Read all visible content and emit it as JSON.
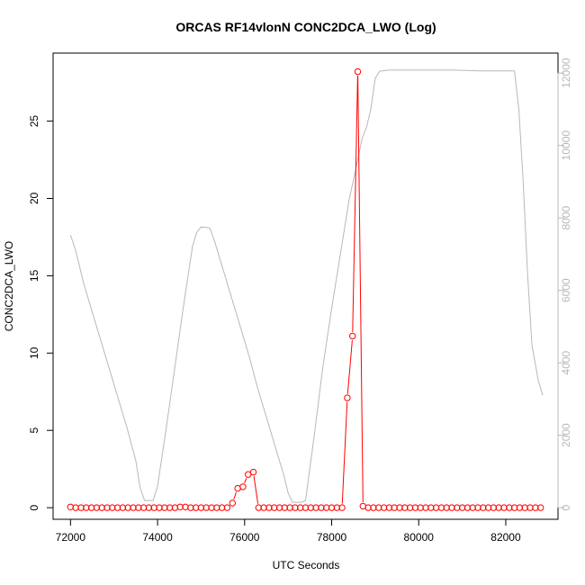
{
  "chart_data": {
    "type": "line",
    "title": "ORCAS RF14vlonN CONC2DCA_LWO (Log)",
    "xlabel": "UTC Seconds",
    "ylabel": "CONC2DCA_LWO",
    "xlim": [
      71600,
      83200
    ],
    "ylim": [
      -0.75,
      29.4
    ],
    "y2lim": [
      -320,
      12550
    ],
    "x_ticks": [
      72000,
      74000,
      76000,
      78000,
      80000,
      82000
    ],
    "y_ticks": [
      0,
      5,
      10,
      15,
      20,
      25
    ],
    "y2_ticks": [
      0,
      2000,
      4000,
      6000,
      8000,
      10000,
      12000
    ],
    "grid": false,
    "colors": {
      "primary": "#ff0000",
      "secondary": "#b8b8b8"
    },
    "series": [
      {
        "axis": "left",
        "style": "points+segments",
        "values": [
          [
            72000,
            0.05
          ],
          [
            72120,
            0
          ],
          [
            72240,
            0
          ],
          [
            72360,
            0
          ],
          [
            72480,
            0
          ],
          [
            72600,
            0
          ],
          [
            72720,
            0
          ],
          [
            72840,
            0
          ],
          [
            72960,
            0
          ],
          [
            73080,
            0
          ],
          [
            73200,
            0
          ],
          [
            73320,
            0
          ],
          [
            73440,
            0
          ],
          [
            73560,
            0
          ],
          [
            73680,
            0
          ],
          [
            73800,
            0
          ],
          [
            73920,
            0
          ],
          [
            74040,
            0
          ],
          [
            74160,
            0
          ],
          [
            74280,
            0
          ],
          [
            74400,
            0
          ],
          [
            74520,
            0.05
          ],
          [
            74640,
            0.05
          ],
          [
            74760,
            0
          ],
          [
            74880,
            0
          ],
          [
            75000,
            0
          ],
          [
            75120,
            0
          ],
          [
            75240,
            0
          ],
          [
            75360,
            0
          ],
          [
            75480,
            0
          ],
          [
            75600,
            0
          ],
          [
            75720,
            0.3
          ],
          [
            75840,
            1.25
          ],
          [
            75960,
            1.35
          ],
          [
            76080,
            2.15
          ],
          [
            76200,
            2.3
          ],
          [
            76320,
            0
          ],
          [
            76440,
            0
          ],
          [
            76560,
            0
          ],
          [
            76680,
            0
          ],
          [
            76800,
            0
          ],
          [
            76920,
            0
          ],
          [
            77040,
            0
          ],
          [
            77160,
            0
          ],
          [
            77280,
            0
          ],
          [
            77400,
            0
          ],
          [
            77520,
            0
          ],
          [
            77640,
            0
          ],
          [
            77760,
            0
          ],
          [
            77880,
            0
          ],
          [
            78000,
            0
          ],
          [
            78120,
            0
          ],
          [
            78240,
            0
          ],
          [
            78360,
            7.1
          ],
          [
            78480,
            11.1
          ],
          [
            78600,
            28.2
          ],
          [
            78720,
            0.1
          ],
          [
            78840,
            0
          ],
          [
            78960,
            0
          ],
          [
            79080,
            0
          ],
          [
            79200,
            0
          ],
          [
            79320,
            0
          ],
          [
            79440,
            0
          ],
          [
            79560,
            0
          ],
          [
            79680,
            0
          ],
          [
            79800,
            0
          ],
          [
            79920,
            0
          ],
          [
            80040,
            0
          ],
          [
            80160,
            0
          ],
          [
            80280,
            0
          ],
          [
            80400,
            0
          ],
          [
            80520,
            0
          ],
          [
            80640,
            0
          ],
          [
            80760,
            0
          ],
          [
            80880,
            0
          ],
          [
            81000,
            0
          ],
          [
            81120,
            0
          ],
          [
            81240,
            0
          ],
          [
            81360,
            0
          ],
          [
            81480,
            0
          ],
          [
            81600,
            0
          ],
          [
            81720,
            0
          ],
          [
            81840,
            0
          ],
          [
            81960,
            0
          ],
          [
            82080,
            0
          ],
          [
            82200,
            0
          ],
          [
            82320,
            0
          ],
          [
            82440,
            0
          ],
          [
            82560,
            0
          ],
          [
            82680,
            0
          ],
          [
            82800,
            0
          ]
        ]
      },
      {
        "axis": "right",
        "style": "line",
        "values": [
          [
            72000,
            7530
          ],
          [
            72120,
            7100
          ],
          [
            72300,
            6200
          ],
          [
            72500,
            5400
          ],
          [
            72700,
            4600
          ],
          [
            72900,
            3800
          ],
          [
            73100,
            3000
          ],
          [
            73300,
            2200
          ],
          [
            73500,
            1300
          ],
          [
            73600,
            550
          ],
          [
            73700,
            200
          ],
          [
            73800,
            200
          ],
          [
            73900,
            200
          ],
          [
            74000,
            600
          ],
          [
            74200,
            2200
          ],
          [
            74400,
            3900
          ],
          [
            74600,
            5600
          ],
          [
            74800,
            7200
          ],
          [
            74900,
            7600
          ],
          [
            75000,
            7750
          ],
          [
            75100,
            7740
          ],
          [
            75200,
            7720
          ],
          [
            75300,
            7400
          ],
          [
            75500,
            6600
          ],
          [
            75700,
            5800
          ],
          [
            75900,
            5000
          ],
          [
            76100,
            4200
          ],
          [
            76300,
            3300
          ],
          [
            76500,
            2500
          ],
          [
            76700,
            1700
          ],
          [
            76900,
            900
          ],
          [
            77000,
            400
          ],
          [
            77100,
            150
          ],
          [
            77200,
            150
          ],
          [
            77300,
            150
          ],
          [
            77400,
            200
          ],
          [
            77600,
            2000
          ],
          [
            77800,
            3900
          ],
          [
            78000,
            5500
          ],
          [
            78200,
            7000
          ],
          [
            78400,
            8500
          ],
          [
            78600,
            9600
          ],
          [
            78700,
            10200
          ],
          [
            78800,
            10500
          ],
          [
            78900,
            11000
          ],
          [
            79000,
            11850
          ],
          [
            79100,
            12050
          ],
          [
            79300,
            12080
          ],
          [
            79700,
            12080
          ],
          [
            80200,
            12080
          ],
          [
            80800,
            12080
          ],
          [
            81400,
            12060
          ],
          [
            81800,
            12060
          ],
          [
            82200,
            12060
          ],
          [
            82300,
            11000
          ],
          [
            82400,
            9000
          ],
          [
            82500,
            6500
          ],
          [
            82600,
            4500
          ],
          [
            82750,
            3500
          ],
          [
            82850,
            3100
          ]
        ]
      }
    ]
  }
}
